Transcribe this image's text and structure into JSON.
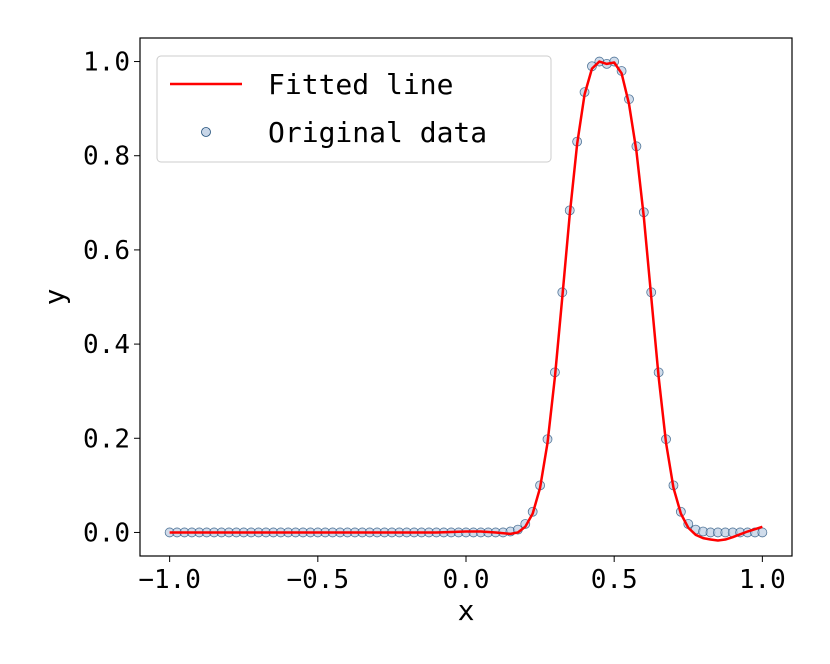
{
  "chart_data": {
    "type": "scatter",
    "xlabel": "x",
    "ylabel": "y",
    "xlim": [
      -1.1,
      1.1
    ],
    "ylim": [
      -0.05,
      1.05
    ],
    "xticks": [
      -1.0,
      -0.5,
      0.0,
      0.5,
      1.0
    ],
    "xtick_labels": [
      "−1.0",
      "−0.5",
      "0.0",
      "0.5",
      "1.0"
    ],
    "yticks": [
      0.0,
      0.2,
      0.4,
      0.6,
      0.8,
      1.0
    ],
    "ytick_labels": [
      "0.0",
      "0.2",
      "0.4",
      "0.6",
      "0.8",
      "1.0"
    ],
    "grid": false,
    "legend_position": "top-left",
    "legend": [
      {
        "label": "Fitted line",
        "kind": "line",
        "color": "#ff0000"
      },
      {
        "label": "Original data",
        "kind": "marker",
        "color": "#b0c4de"
      }
    ],
    "series": [
      {
        "name": "Original data",
        "kind": "scatter",
        "fill": "#b0c4de",
        "edge": "#1f4e79",
        "x": [
          -1.0,
          -0.975,
          -0.95,
          -0.925,
          -0.9,
          -0.875,
          -0.85,
          -0.825,
          -0.8,
          -0.775,
          -0.75,
          -0.725,
          -0.7,
          -0.675,
          -0.65,
          -0.625,
          -0.6,
          -0.575,
          -0.55,
          -0.525,
          -0.5,
          -0.475,
          -0.45,
          -0.425,
          -0.4,
          -0.375,
          -0.35,
          -0.325,
          -0.3,
          -0.275,
          -0.25,
          -0.225,
          -0.2,
          -0.175,
          -0.15,
          -0.125,
          -0.1,
          -0.075,
          -0.05,
          -0.025,
          0.0,
          0.025,
          0.05,
          0.075,
          0.1,
          0.125,
          0.15,
          0.175,
          0.2,
          0.225,
          0.25,
          0.275,
          0.3,
          0.325,
          0.35,
          0.375,
          0.4,
          0.425,
          0.45,
          0.475,
          0.5,
          0.525,
          0.55,
          0.575,
          0.6,
          0.625,
          0.65,
          0.675,
          0.7,
          0.725,
          0.75,
          0.775,
          0.8,
          0.825,
          0.85,
          0.875,
          0.9,
          0.925,
          0.95,
          0.975,
          1.0
        ],
        "y": [
          0.0,
          0.0,
          0.0,
          0.0,
          0.0,
          0.0,
          0.0,
          0.0,
          0.0,
          0.0,
          0.0,
          0.0,
          0.0,
          0.0,
          0.0,
          0.0,
          0.0,
          0.0,
          0.0,
          0.0,
          0.0,
          0.0,
          0.0,
          0.0,
          0.0,
          0.0,
          0.0,
          0.0,
          0.0,
          0.0,
          0.0,
          0.0,
          0.0,
          0.0,
          0.0,
          0.0,
          0.0,
          0.0,
          0.0,
          0.0,
          0.0,
          0.0,
          0.0,
          0.0,
          0.0,
          0.0,
          0.002,
          0.006,
          0.018,
          0.044,
          0.1,
          0.198,
          0.34,
          0.51,
          0.684,
          0.83,
          0.935,
          0.99,
          1.0,
          0.995,
          1.0,
          0.98,
          0.92,
          0.82,
          0.68,
          0.51,
          0.34,
          0.198,
          0.1,
          0.044,
          0.018,
          0.006,
          0.002,
          0.0,
          0.0,
          0.0,
          0.0,
          0.0,
          0.0,
          0.0,
          0.0
        ]
      },
      {
        "name": "Fitted line",
        "kind": "line",
        "color": "#ff0000",
        "x": [
          -1.0,
          -0.9,
          -0.8,
          -0.7,
          -0.6,
          -0.5,
          -0.4,
          -0.3,
          -0.2,
          -0.1,
          0.0,
          0.05,
          0.1,
          0.15,
          0.175,
          0.2,
          0.225,
          0.25,
          0.275,
          0.3,
          0.325,
          0.35,
          0.375,
          0.4,
          0.425,
          0.45,
          0.475,
          0.5,
          0.525,
          0.55,
          0.575,
          0.6,
          0.625,
          0.65,
          0.675,
          0.7,
          0.725,
          0.75,
          0.775,
          0.8,
          0.825,
          0.85,
          0.875,
          0.9,
          0.925,
          0.95,
          0.975,
          1.0
        ],
        "y": [
          0.0,
          0.0,
          0.0,
          0.0,
          0.0,
          0.0,
          0.0,
          0.0,
          0.0,
          0.0,
          0.002,
          0.002,
          0.0,
          -0.003,
          0.0,
          0.012,
          0.04,
          0.095,
          0.19,
          0.33,
          0.5,
          0.675,
          0.825,
          0.93,
          0.985,
          1.0,
          0.995,
          0.998,
          0.975,
          0.91,
          0.81,
          0.67,
          0.5,
          0.33,
          0.19,
          0.095,
          0.04,
          0.01,
          -0.005,
          -0.012,
          -0.015,
          -0.017,
          -0.015,
          -0.01,
          -0.004,
          0.002,
          0.007,
          0.012
        ]
      }
    ]
  }
}
